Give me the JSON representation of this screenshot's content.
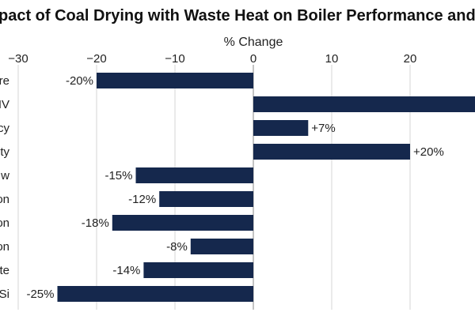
{
  "chart_data": {
    "type": "bar",
    "orientation": "horizontal",
    "title": "pact of Coal Drying with Waste Heat on Boiler Performance and Emissio",
    "xlabel": "% Change",
    "ylabel": "",
    "xlim": [
      -30,
      28
    ],
    "x_ticks": [
      -30,
      -20,
      -10,
      0,
      10,
      20
    ],
    "x_tick_labels": [
      "−30",
      "−20",
      "−10",
      "0",
      "10",
      "20"
    ],
    "grid": true,
    "bar_color": "#15284d",
    "categories": [
      "re",
      "IV",
      "cy",
      "ty",
      "w",
      "on",
      "on",
      "on",
      "te",
      "Si"
    ],
    "values": [
      -20,
      30,
      7,
      20,
      -15,
      -12,
      -18,
      -8,
      -14,
      -25
    ],
    "data_labels": [
      "-20%",
      "",
      "+7%",
      "+20%",
      "-15%",
      "-12%",
      "-18%",
      "-8%",
      "-14%",
      "-25%"
    ]
  }
}
